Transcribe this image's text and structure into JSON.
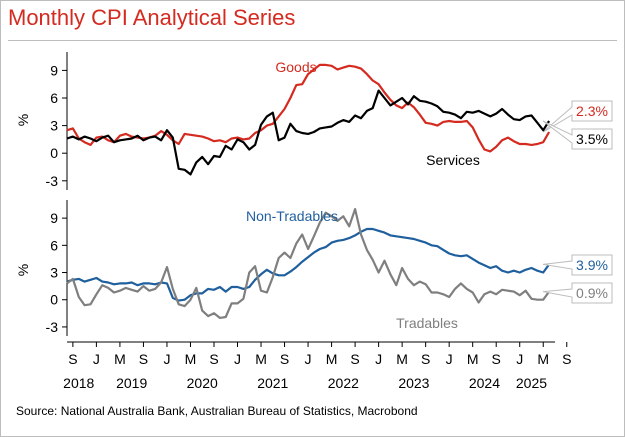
{
  "title": "Monthly CPI Analytical Series",
  "source": "Source: National Australia Bank, Australian Bureau of Statistics, Macrobond",
  "colors": {
    "red": "#d42a1f",
    "black": "#000000",
    "blue": "#1f5f9e",
    "gray": "#7f7f7f"
  },
  "chart_data": [
    {
      "type": "line",
      "ylabel": "%",
      "ylim": [
        -4,
        11
      ],
      "yticks": [
        -3,
        0,
        3,
        6,
        9
      ],
      "series": [
        {
          "name": "Goods",
          "color": "#d42a1f",
          "end_label": "2.3%",
          "x": [
            "2018-08",
            "2018-09",
            "2018-10",
            "2018-11",
            "2018-12",
            "2019-01",
            "2019-02",
            "2019-03",
            "2019-04",
            "2019-05",
            "2019-06",
            "2019-07",
            "2019-08",
            "2019-09",
            "2019-10",
            "2019-11",
            "2019-12",
            "2020-01",
            "2020-02",
            "2020-03",
            "2020-04",
            "2020-05",
            "2020-06",
            "2020-07",
            "2020-08",
            "2020-09",
            "2020-10",
            "2020-11",
            "2020-12",
            "2021-01",
            "2021-02",
            "2021-03",
            "2021-04",
            "2021-05",
            "2021-06",
            "2021-07",
            "2021-08",
            "2021-09",
            "2021-10",
            "2021-11",
            "2021-12",
            "2022-01",
            "2022-02",
            "2022-03",
            "2022-04",
            "2022-05",
            "2022-06",
            "2022-07",
            "2022-08",
            "2022-09",
            "2022-10",
            "2022-11",
            "2022-12",
            "2023-01",
            "2023-02",
            "2023-03",
            "2023-04",
            "2023-05",
            "2023-06",
            "2023-07",
            "2023-08",
            "2023-09",
            "2023-10",
            "2023-11",
            "2023-12",
            "2024-01",
            "2024-02",
            "2024-03",
            "2024-04",
            "2024-05",
            "2024-06",
            "2024-07",
            "2024-08",
            "2024-09",
            "2024-10",
            "2024-11",
            "2024-12",
            "2025-01",
            "2025-02",
            "2025-03",
            "2025-04",
            "2025-05",
            "2025-06"
          ],
          "y": [
            2.5,
            2.7,
            1.6,
            1.2,
            0.9,
            1.7,
            1.8,
            1.4,
            1.2,
            1.9,
            2.1,
            1.8,
            1.7,
            1.6,
            1.7,
            1.9,
            2.4,
            2.0,
            1.4,
            1.0,
            2.1,
            2.0,
            1.9,
            1.8,
            1.6,
            1.3,
            1.4,
            1.2,
            1.6,
            1.7,
            1.5,
            1.6,
            2.2,
            2.5,
            3.0,
            3.2,
            4.0,
            4.8,
            6.0,
            7.4,
            7.5,
            8.6,
            9.1,
            9.6,
            9.6,
            9.5,
            9.1,
            9.3,
            9.5,
            9.4,
            9.2,
            8.6,
            7.9,
            7.5,
            6.6,
            5.8,
            5.2,
            4.9,
            5.5,
            5.0,
            4.2,
            3.3,
            3.2,
            3.0,
            3.4,
            3.5,
            3.4,
            3.4,
            3.5,
            2.8,
            1.5,
            0.4,
            0.2,
            0.7,
            1.4,
            1.7,
            1.3,
            1.0,
            1.0,
            0.9,
            1.0,
            1.2,
            2.3
          ]
        },
        {
          "name": "Services",
          "color": "#000000",
          "end_label": "3.5%",
          "x": [
            "2018-08",
            "2018-09",
            "2018-10",
            "2018-11",
            "2018-12",
            "2019-01",
            "2019-02",
            "2019-03",
            "2019-04",
            "2019-05",
            "2019-06",
            "2019-07",
            "2019-08",
            "2019-09",
            "2019-10",
            "2019-11",
            "2019-12",
            "2020-01",
            "2020-02",
            "2020-03",
            "2020-04",
            "2020-05",
            "2020-06",
            "2020-07",
            "2020-08",
            "2020-09",
            "2020-10",
            "2020-11",
            "2020-12",
            "2021-01",
            "2021-02",
            "2021-03",
            "2021-04",
            "2021-05",
            "2021-06",
            "2021-07",
            "2021-08",
            "2021-09",
            "2021-10",
            "2021-11",
            "2021-12",
            "2022-01",
            "2022-02",
            "2022-03",
            "2022-04",
            "2022-05",
            "2022-06",
            "2022-07",
            "2022-08",
            "2022-09",
            "2022-10",
            "2022-11",
            "2022-12",
            "2023-01",
            "2023-02",
            "2023-03",
            "2023-04",
            "2023-05",
            "2023-06",
            "2023-07",
            "2023-08",
            "2023-09",
            "2023-10",
            "2023-11",
            "2023-12",
            "2024-01",
            "2024-02",
            "2024-03",
            "2024-04",
            "2024-05",
            "2024-06",
            "2024-07",
            "2024-08",
            "2024-09",
            "2024-10",
            "2024-11",
            "2024-12",
            "2025-01",
            "2025-02",
            "2025-03",
            "2025-04",
            "2025-05",
            "2025-06"
          ],
          "y": [
            1.6,
            1.8,
            1.5,
            1.8,
            1.6,
            1.3,
            1.7,
            1.9,
            1.2,
            1.4,
            1.5,
            1.6,
            1.9,
            1.4,
            1.7,
            1.8,
            1.4,
            2.5,
            1.7,
            -1.7,
            -1.8,
            -2.3,
            -1.0,
            -0.4,
            -1.2,
            -0.3,
            -0.4,
            0.8,
            0.4,
            1.5,
            1.2,
            0.4,
            0.9,
            3.1,
            4.0,
            4.4,
            1.4,
            1.7,
            3.2,
            2.4,
            2.2,
            2.1,
            2.3,
            2.7,
            2.8,
            2.9,
            3.3,
            3.6,
            3.4,
            4.1,
            3.8,
            4.6,
            4.9,
            6.8,
            6.0,
            5.2,
            5.6,
            6.0,
            5.3,
            6.2,
            5.7,
            5.6,
            5.4,
            5.1,
            4.5,
            4.4,
            4.2,
            3.8,
            4.5,
            4.4,
            4.6,
            4.3,
            4.0,
            4.3,
            4.8,
            4.2,
            3.7,
            3.6,
            4.0,
            4.1,
            3.3,
            2.5,
            3.5
          ]
        }
      ],
      "annotations": [
        {
          "text": "Goods",
          "color": "#d42a1f"
        },
        {
          "text": "Services",
          "color": "#000000"
        }
      ]
    },
    {
      "type": "line",
      "ylabel": "%",
      "ylim": [
        -4,
        11
      ],
      "yticks": [
        -3,
        0,
        3,
        6,
        9
      ],
      "series": [
        {
          "name": "Non-Tradables",
          "color": "#1f5f9e",
          "end_label": "3.9%",
          "x": [
            "2018-08",
            "2018-09",
            "2018-10",
            "2018-11",
            "2018-12",
            "2019-01",
            "2019-02",
            "2019-03",
            "2019-04",
            "2019-05",
            "2019-06",
            "2019-07",
            "2019-08",
            "2019-09",
            "2019-10",
            "2019-11",
            "2019-12",
            "2020-01",
            "2020-02",
            "2020-03",
            "2020-04",
            "2020-05",
            "2020-06",
            "2020-07",
            "2020-08",
            "2020-09",
            "2020-10",
            "2020-11",
            "2020-12",
            "2021-01",
            "2021-02",
            "2021-03",
            "2021-04",
            "2021-05",
            "2021-06",
            "2021-07",
            "2021-08",
            "2021-09",
            "2021-10",
            "2021-11",
            "2021-12",
            "2022-01",
            "2022-02",
            "2022-03",
            "2022-04",
            "2022-05",
            "2022-06",
            "2022-07",
            "2022-08",
            "2022-09",
            "2022-10",
            "2022-11",
            "2022-12",
            "2023-01",
            "2023-02",
            "2023-03",
            "2023-04",
            "2023-05",
            "2023-06",
            "2023-07",
            "2023-08",
            "2023-09",
            "2023-10",
            "2023-11",
            "2023-12",
            "2024-01",
            "2024-02",
            "2024-03",
            "2024-04",
            "2024-05",
            "2024-06",
            "2024-07",
            "2024-08",
            "2024-09",
            "2024-10",
            "2024-11",
            "2024-12",
            "2025-01",
            "2025-02",
            "2025-03",
            "2025-04",
            "2025-05",
            "2025-06"
          ],
          "y": [
            2.0,
            2.2,
            2.3,
            2.0,
            2.2,
            2.4,
            2.0,
            1.9,
            1.7,
            1.8,
            1.8,
            1.9,
            1.6,
            1.8,
            1.8,
            1.7,
            1.9,
            1.8,
            0.2,
            -0.1,
            0.0,
            0.5,
            0.7,
            0.7,
            1.2,
            1.1,
            1.4,
            0.9,
            1.4,
            1.4,
            1.2,
            1.4,
            2.2,
            2.8,
            3.3,
            2.9,
            2.7,
            2.7,
            3.1,
            3.6,
            4.2,
            4.7,
            5.2,
            5.6,
            5.8,
            6.3,
            6.5,
            6.6,
            6.8,
            7.1,
            7.5,
            7.8,
            7.8,
            7.6,
            7.4,
            7.1,
            7.0,
            6.9,
            6.8,
            6.7,
            6.5,
            6.3,
            6.0,
            5.9,
            5.5,
            5.1,
            4.9,
            4.8,
            4.9,
            4.5,
            4.1,
            3.8,
            3.5,
            3.7,
            3.2,
            3.0,
            3.2,
            3.0,
            3.3,
            3.5,
            3.2,
            3.0,
            3.9
          ]
        },
        {
          "name": "Tradables",
          "color": "#7f7f7f",
          "end_label": "0.9%",
          "x": [
            "2018-08",
            "2018-09",
            "2018-10",
            "2018-11",
            "2018-12",
            "2019-01",
            "2019-02",
            "2019-03",
            "2019-04",
            "2019-05",
            "2019-06",
            "2019-07",
            "2019-08",
            "2019-09",
            "2019-10",
            "2019-11",
            "2019-12",
            "2020-01",
            "2020-02",
            "2020-03",
            "2020-04",
            "2020-05",
            "2020-06",
            "2020-07",
            "2020-08",
            "2020-09",
            "2020-10",
            "2020-11",
            "2020-12",
            "2021-01",
            "2021-02",
            "2021-03",
            "2021-04",
            "2021-05",
            "2021-06",
            "2021-07",
            "2021-08",
            "2021-09",
            "2021-10",
            "2021-11",
            "2021-12",
            "2022-01",
            "2022-02",
            "2022-03",
            "2022-04",
            "2022-05",
            "2022-06",
            "2022-07",
            "2022-08",
            "2022-09",
            "2022-10",
            "2022-11",
            "2022-12",
            "2023-01",
            "2023-02",
            "2023-03",
            "2023-04",
            "2023-05",
            "2023-06",
            "2023-07",
            "2023-08",
            "2023-09",
            "2023-10",
            "2023-11",
            "2023-12",
            "2024-01",
            "2024-02",
            "2024-03",
            "2024-04",
            "2024-05",
            "2024-06",
            "2024-07",
            "2024-08",
            "2024-09",
            "2024-10",
            "2024-11",
            "2024-12",
            "2025-01",
            "2025-02",
            "2025-03",
            "2025-04",
            "2025-05",
            "2025-06"
          ],
          "y": [
            1.8,
            2.3,
            0.3,
            -0.6,
            -0.5,
            0.6,
            1.6,
            1.3,
            0.8,
            1.0,
            1.3,
            1.1,
            0.9,
            1.5,
            1.0,
            1.2,
            1.9,
            3.6,
            1.2,
            -0.5,
            -0.7,
            0.0,
            1.3,
            -1.2,
            -1.8,
            -1.5,
            -2.0,
            -1.9,
            -0.4,
            -0.4,
            0.1,
            3.0,
            3.7,
            1.0,
            0.8,
            2.5,
            4.6,
            5.2,
            4.6,
            6.2,
            7.2,
            5.6,
            7.0,
            8.5,
            9.6,
            9.2,
            8.7,
            9.2,
            8.1,
            10.0,
            7.2,
            5.5,
            4.4,
            3.0,
            4.3,
            2.8,
            1.6,
            3.5,
            2.3,
            1.6,
            2.0,
            1.7,
            0.8,
            0.8,
            0.6,
            0.3,
            1.2,
            1.8,
            1.2,
            0.8,
            -0.3,
            0.6,
            0.9,
            0.6,
            1.1,
            1.0,
            0.9,
            0.5,
            1.0,
            0.1,
            0.0,
            0.0,
            0.9
          ]
        }
      ],
      "annotations": [
        {
          "text": "Non-Tradables",
          "color": "#1f5f9e"
        },
        {
          "text": "Tradables",
          "color": "#7f7f7f"
        }
      ]
    }
  ],
  "x_axis": {
    "xlim": [
      "2018-08",
      "2025-07"
    ],
    "ticks": [
      {
        "date": "2018-09",
        "label": "S"
      },
      {
        "date": "2019-01",
        "label": "J"
      },
      {
        "date": "2019-05",
        "label": "M"
      },
      {
        "date": "2019-09",
        "label": "S"
      },
      {
        "date": "2020-01",
        "label": "J"
      },
      {
        "date": "2020-05",
        "label": "M"
      },
      {
        "date": "2020-09",
        "label": "S"
      },
      {
        "date": "2021-01",
        "label": "J"
      },
      {
        "date": "2021-05",
        "label": "M"
      },
      {
        "date": "2021-09",
        "label": "S"
      },
      {
        "date": "2022-01",
        "label": "J"
      },
      {
        "date": "2022-05",
        "label": "M"
      },
      {
        "date": "2022-09",
        "label": "S"
      },
      {
        "date": "2023-01",
        "label": "J"
      },
      {
        "date": "2023-05",
        "label": "M"
      },
      {
        "date": "2023-09",
        "label": "S"
      },
      {
        "date": "2024-01",
        "label": "J"
      },
      {
        "date": "2024-05",
        "label": "M"
      },
      {
        "date": "2024-09",
        "label": "S"
      },
      {
        "date": "2025-01",
        "label": "J"
      },
      {
        "date": "2025-05",
        "label": "M"
      },
      {
        "date": "2025-09",
        "label": "S"
      }
    ],
    "years": [
      {
        "date": "2018-10",
        "label": "2018"
      },
      {
        "date": "2019-07",
        "label": "2019"
      },
      {
        "date": "2020-07",
        "label": "2020"
      },
      {
        "date": "2021-07",
        "label": "2021"
      },
      {
        "date": "2022-07",
        "label": "2022"
      },
      {
        "date": "2023-07",
        "label": "2023"
      },
      {
        "date": "2024-07",
        "label": "2024"
      },
      {
        "date": "2025-03",
        "label": "2025"
      }
    ]
  }
}
